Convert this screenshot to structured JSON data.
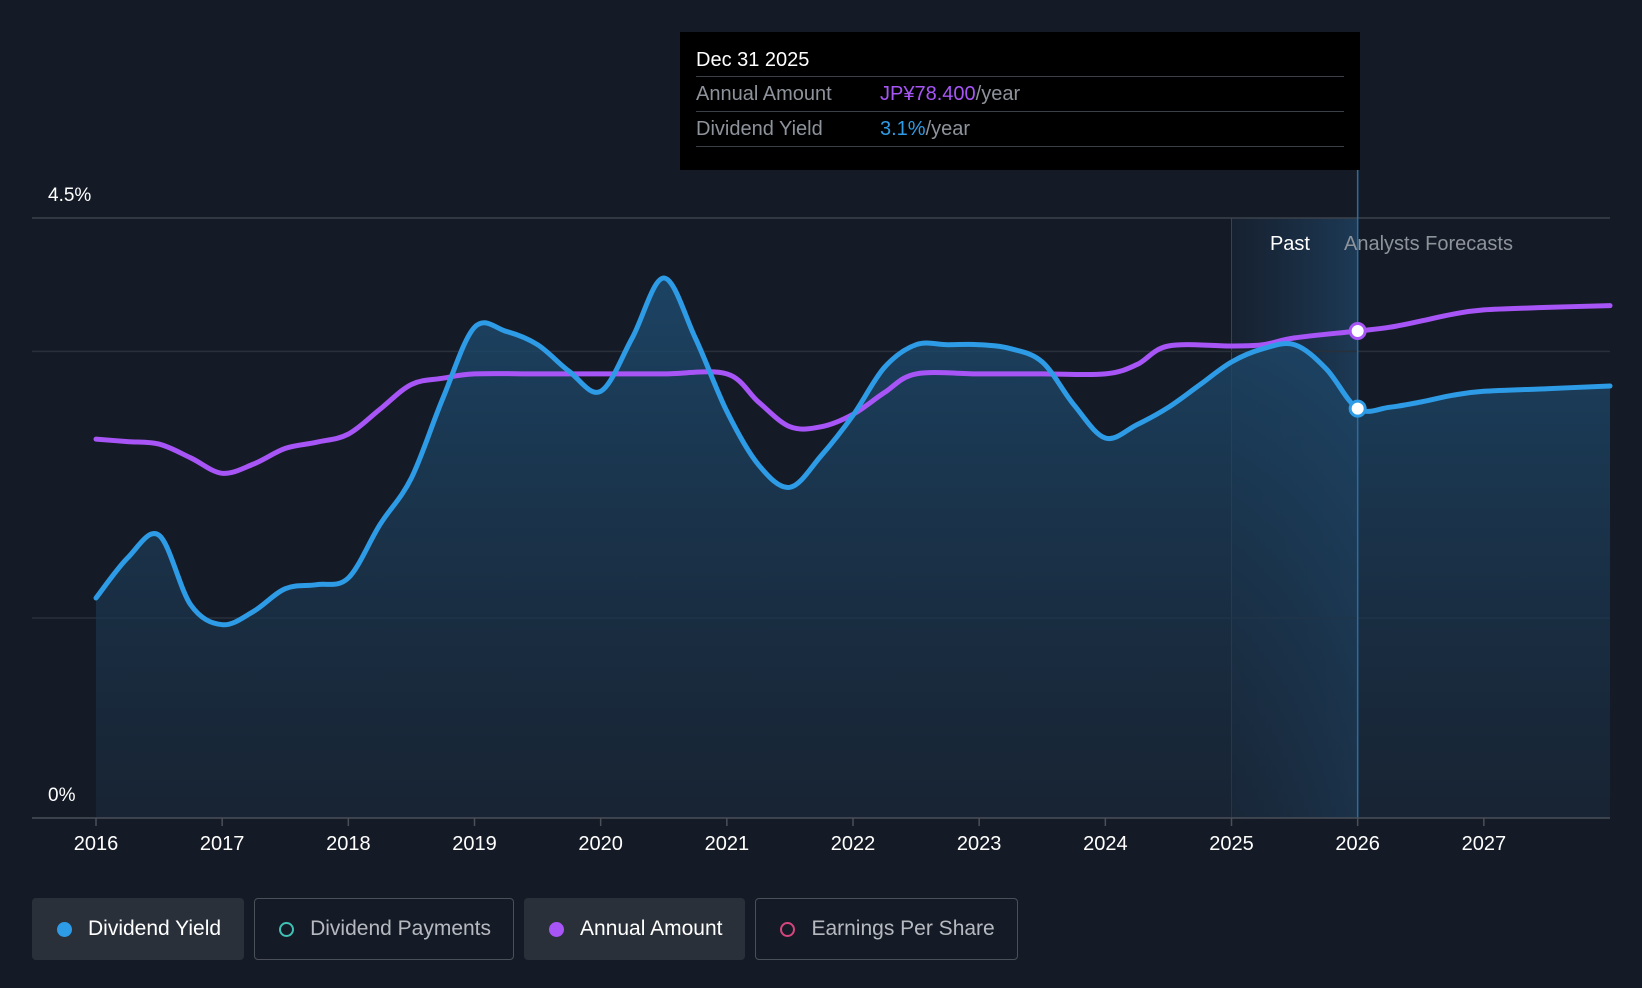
{
  "chart_data": {
    "type": "line",
    "y_axis": {
      "top_label": "4.5%",
      "bottom_label": "0%",
      "range": [
        0,
        4.5
      ]
    },
    "x_axis": {
      "tick_labels": [
        "2016",
        "2017",
        "2018",
        "2019",
        "2020",
        "2021",
        "2022",
        "2023",
        "2024",
        "2025",
        "2026",
        "2027"
      ]
    },
    "sections": {
      "past_label": "Past",
      "forecast_label": "Analysts Forecasts"
    },
    "series": [
      {
        "name": "Dividend Yield",
        "color": "#2e9be6",
        "unit": "%",
        "x": [
          2016.0,
          2016.25,
          2016.5,
          2016.75,
          2017.0,
          2017.25,
          2017.5,
          2017.75,
          2018.0,
          2018.25,
          2018.5,
          2018.75,
          2019.0,
          2019.25,
          2019.5,
          2019.75,
          2020.0,
          2020.25,
          2020.5,
          2020.75,
          2021.0,
          2021.25,
          2021.5,
          2021.75,
          2022.0,
          2022.25,
          2022.5,
          2022.75,
          2023.0,
          2023.25,
          2023.5,
          2023.75,
          2024.0,
          2024.25,
          2024.5,
          2024.75,
          2025.0,
          2025.25,
          2025.5,
          2025.75,
          2026.0,
          2026.25,
          2026.5,
          2026.75,
          2027.0,
          2027.5,
          2028.0
        ],
        "values": [
          1.65,
          1.95,
          2.12,
          1.6,
          1.45,
          1.55,
          1.72,
          1.75,
          1.8,
          2.2,
          2.55,
          3.15,
          3.68,
          3.65,
          3.55,
          3.35,
          3.2,
          3.6,
          4.05,
          3.6,
          3.05,
          2.65,
          2.48,
          2.72,
          3.02,
          3.38,
          3.55,
          3.55,
          3.55,
          3.52,
          3.42,
          3.1,
          2.85,
          2.95,
          3.08,
          3.25,
          3.42,
          3.52,
          3.55,
          3.37,
          3.07,
          3.08,
          3.12,
          3.17,
          3.2,
          3.22,
          3.24
        ]
      },
      {
        "name": "Annual Amount",
        "color": "#a855f7",
        "unit": "JPY/year",
        "x": [
          2016.0,
          2016.25,
          2016.5,
          2016.75,
          2017.0,
          2017.25,
          2017.5,
          2017.75,
          2018.0,
          2018.25,
          2018.5,
          2018.75,
          2019.0,
          2019.5,
          2020.0,
          2020.5,
          2021.0,
          2021.25,
          2021.5,
          2021.75,
          2022.0,
          2022.25,
          2022.5,
          2023.0,
          2023.5,
          2024.0,
          2024.25,
          2024.5,
          2025.0,
          2025.25,
          2025.5,
          2026.0,
          2026.25,
          2026.5,
          2026.75,
          2027.0,
          2027.5,
          2028.0
        ],
        "values": [
          61.0,
          60.6,
          60.2,
          58.0,
          55.5,
          57.0,
          59.5,
          60.5,
          61.8,
          65.8,
          69.8,
          70.8,
          71.5,
          71.5,
          71.5,
          71.5,
          71.5,
          67.0,
          63.0,
          63.0,
          65.0,
          68.5,
          71.5,
          71.5,
          71.5,
          71.5,
          73.0,
          76.0,
          76.0,
          76.2,
          77.3,
          78.4,
          79.0,
          80.0,
          81.1,
          81.8,
          82.2,
          82.5
        ]
      }
    ],
    "highlight": {
      "x": 2026.0,
      "date": "Dec 31 2025"
    }
  },
  "tooltip": {
    "date": "Dec 31 2025",
    "rows": [
      {
        "label": "Annual Amount",
        "value": "JP¥78.400",
        "unit": "/year"
      },
      {
        "label": "Dividend Yield",
        "value": "3.1%",
        "unit": "/year"
      }
    ]
  },
  "legend": [
    {
      "label": "Dividend Yield",
      "color": "#2e9be6",
      "filled": true,
      "active": true
    },
    {
      "label": "Dividend Payments",
      "color": "#3fc1b5",
      "filled": false,
      "active": false
    },
    {
      "label": "Annual Amount",
      "color": "#a855f7",
      "filled": true,
      "active": true
    },
    {
      "label": "Earnings Per Share",
      "color": "#d6457d",
      "filled": false,
      "active": false
    }
  ]
}
